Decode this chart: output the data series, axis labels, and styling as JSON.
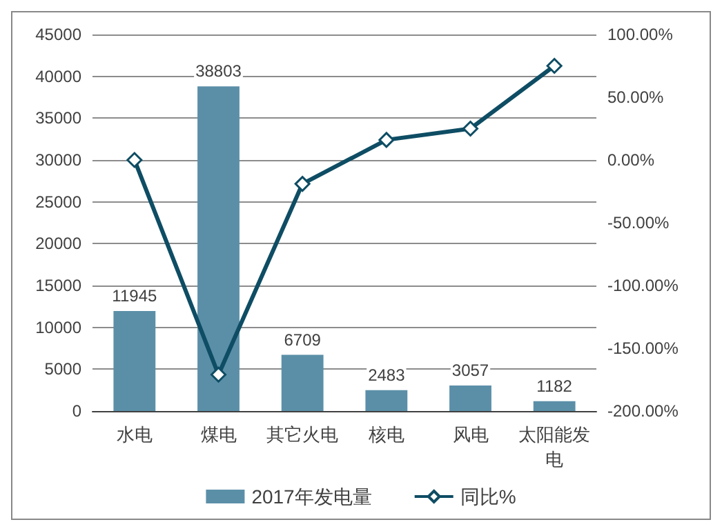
{
  "chart_data": {
    "type": "bar",
    "categories": [
      "水电",
      "煤电",
      "其它火电",
      "核电",
      "风电",
      "太阳能发电"
    ],
    "series": [
      {
        "name": "2017年发电量",
        "color": "#5b8fa8",
        "values": [
          11945,
          38803,
          6709,
          2483,
          3057,
          1182
        ],
        "value_labels": [
          "11945",
          "38803",
          "6709",
          "2483",
          "3057",
          "1182"
        ]
      },
      {
        "name": "同比%",
        "type": "line",
        "axis": "y2",
        "color": "#0e4d64",
        "marker": "diamond",
        "values": [
          0,
          -171,
          -19,
          16,
          25,
          75
        ]
      }
    ],
    "ylim": [
      0,
      45000
    ],
    "yticks": [
      0,
      5000,
      10000,
      15000,
      20000,
      25000,
      30000,
      35000,
      40000,
      45000
    ],
    "y2lim": [
      -200,
      100
    ],
    "y2ticks": [
      {
        "value": -200,
        "label": "-200.00%"
      },
      {
        "value": -150,
        "label": "-150.00%"
      },
      {
        "value": -100,
        "label": "-100.00%"
      },
      {
        "value": -50,
        "label": "-50.00%"
      },
      {
        "value": 0,
        "label": "0.00%"
      },
      {
        "value": 50,
        "label": "50.00%"
      },
      {
        "value": 100,
        "label": "100.00%"
      }
    ],
    "grid": "y",
    "legend": "bottom"
  }
}
